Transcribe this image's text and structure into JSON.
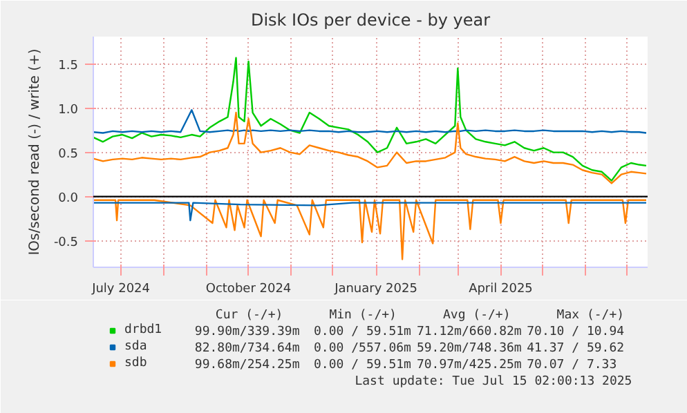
{
  "chart_data": {
    "type": "line",
    "title": "Disk IOs per device - by year",
    "ylabel": "IOs/second read (-) / write (+)",
    "x": [
      "2024-06-11",
      "2024-06-18",
      "2024-06-25",
      "2024-07-02",
      "2024-07-09",
      "2024-07-16",
      "2024-07-23",
      "2024-07-30",
      "2024-08-06",
      "2024-08-13",
      "2024-08-21",
      "2024-08-27",
      "2024-09-03",
      "2024-09-10",
      "2024-09-16",
      "2024-09-20",
      "2024-09-22",
      "2024-09-24",
      "2024-09-28",
      "2024-10-01",
      "2024-10-04",
      "2024-10-10",
      "2024-10-17",
      "2024-10-24",
      "2024-10-31",
      "2024-11-07",
      "2024-11-14",
      "2024-11-21",
      "2024-11-28",
      "2024-12-05",
      "2024-12-12",
      "2024-12-19",
      "2024-12-26",
      "2025-01-02",
      "2025-01-09",
      "2025-01-16",
      "2025-01-23",
      "2025-01-30",
      "2025-02-06",
      "2025-02-13",
      "2025-02-20",
      "2025-02-27",
      "2025-03-01",
      "2025-03-03",
      "2025-03-07",
      "2025-03-14",
      "2025-03-21",
      "2025-03-28",
      "2025-04-04",
      "2025-04-11",
      "2025-04-18",
      "2025-04-25",
      "2025-05-02",
      "2025-05-09",
      "2025-05-16",
      "2025-05-23",
      "2025-05-30",
      "2025-06-06",
      "2025-06-13",
      "2025-06-20",
      "2025-06-27",
      "2025-07-04",
      "2025-07-10",
      "2025-07-15"
    ],
    "series": [
      {
        "name": "drbd1",
        "color": "#00cc00",
        "values": [
          0.67,
          0.62,
          0.68,
          0.7,
          0.66,
          0.72,
          0.68,
          0.7,
          0.69,
          0.67,
          0.7,
          0.68,
          0.78,
          0.85,
          0.9,
          1.3,
          1.57,
          0.9,
          0.85,
          1.53,
          0.95,
          0.8,
          0.88,
          0.82,
          0.75,
          0.72,
          0.95,
          0.88,
          0.8,
          0.78,
          0.76,
          0.7,
          0.62,
          0.5,
          0.55,
          0.78,
          0.6,
          0.62,
          0.65,
          0.6,
          0.7,
          0.8,
          1.45,
          0.9,
          0.75,
          0.65,
          0.62,
          0.6,
          0.58,
          0.62,
          0.55,
          0.52,
          0.55,
          0.5,
          0.5,
          0.45,
          0.35,
          0.3,
          0.28,
          0.18,
          0.33,
          0.38,
          0.36,
          0.35
        ]
      },
      {
        "name": "sda",
        "color": "#0066b3",
        "values": [
          0.73,
          0.72,
          0.74,
          0.73,
          0.74,
          0.73,
          0.74,
          0.73,
          0.74,
          0.73,
          0.98,
          0.74,
          0.73,
          0.74,
          0.75,
          0.74,
          0.75,
          0.74,
          0.75,
          0.74,
          0.75,
          0.74,
          0.75,
          0.74,
          0.75,
          0.74,
          0.75,
          0.74,
          0.74,
          0.73,
          0.74,
          0.73,
          0.73,
          0.74,
          0.73,
          0.74,
          0.73,
          0.74,
          0.73,
          0.74,
          0.73,
          0.74,
          0.74,
          0.74,
          0.75,
          0.74,
          0.75,
          0.74,
          0.74,
          0.75,
          0.74,
          0.74,
          0.75,
          0.74,
          0.74,
          0.74,
          0.74,
          0.73,
          0.74,
          0.73,
          0.74,
          0.73,
          0.73,
          0.72
        ]
      },
      {
        "name": "sdb",
        "color": "#ff8000",
        "values": [
          0.43,
          0.4,
          0.42,
          0.43,
          0.42,
          0.44,
          0.43,
          0.42,
          0.43,
          0.42,
          0.44,
          0.45,
          0.5,
          0.52,
          0.55,
          0.7,
          0.95,
          0.6,
          0.6,
          0.88,
          0.6,
          0.5,
          0.52,
          0.55,
          0.5,
          0.48,
          0.58,
          0.55,
          0.52,
          0.5,
          0.47,
          0.45,
          0.4,
          0.33,
          0.35,
          0.5,
          0.38,
          0.4,
          0.4,
          0.42,
          0.44,
          0.5,
          0.83,
          0.55,
          0.48,
          0.45,
          0.43,
          0.42,
          0.4,
          0.45,
          0.4,
          0.38,
          0.4,
          0.38,
          0.38,
          0.36,
          0.3,
          0.27,
          0.25,
          0.15,
          0.25,
          0.28,
          0.27,
          0.26
        ]
      },
      {
        "color": "#ff8000",
        "x": [
          "2024-06-11",
          "2024-06-27",
          "2024-06-28",
          "2024-06-29",
          "2024-07-25",
          "2024-08-20",
          "2024-09-05",
          "2024-09-07",
          "2024-09-15",
          "2024-09-17",
          "2024-09-21",
          "2024-09-23",
          "2024-09-28",
          "2024-09-30",
          "2024-10-10",
          "2024-10-12",
          "2024-10-20",
          "2024-10-22",
          "2024-11-05",
          "2024-11-14",
          "2024-11-16",
          "2024-11-24",
          "2024-11-26",
          "2024-12-20",
          "2024-12-22",
          "2024-12-24",
          "2024-12-29",
          "2024-12-31",
          "2025-01-04",
          "2025-01-06",
          "2025-01-18",
          "2025-01-20",
          "2025-01-22",
          "2025-01-28",
          "2025-01-30",
          "2025-02-11",
          "2025-02-13",
          "2025-03-08",
          "2025-03-10",
          "2025-03-12",
          "2025-03-30",
          "2025-04-01",
          "2025-04-03",
          "2025-05-18",
          "2025-05-20",
          "2025-05-22",
          "2025-06-28",
          "2025-06-30",
          "2025-07-02",
          "2025-07-15"
        ],
        "values": [
          -0.04,
          -0.04,
          -0.27,
          -0.04,
          -0.04,
          -0.1,
          -0.3,
          -0.04,
          -0.35,
          -0.04,
          -0.38,
          -0.1,
          -0.35,
          -0.04,
          -0.45,
          -0.04,
          -0.3,
          -0.04,
          -0.1,
          -0.43,
          -0.04,
          -0.35,
          -0.04,
          -0.04,
          -0.52,
          -0.04,
          -0.4,
          -0.04,
          -0.42,
          -0.04,
          -0.04,
          -0.71,
          -0.04,
          -0.4,
          -0.04,
          -0.53,
          -0.04,
          -0.04,
          -0.37,
          -0.04,
          -0.04,
          -0.3,
          -0.04,
          -0.04,
          -0.3,
          -0.04,
          -0.04,
          -0.3,
          -0.04,
          -0.04
        ]
      },
      {
        "color": "#0066b3",
        "x": [
          "2024-06-11",
          "2024-08-19",
          "2024-08-20",
          "2024-08-22",
          "2024-09-25",
          "2024-11-20",
          "2024-12-15",
          "2025-07-15"
        ],
        "values": [
          -0.07,
          -0.07,
          -0.27,
          -0.07,
          -0.09,
          -0.1,
          -0.07,
          -0.07
        ]
      }
    ],
    "xlim": [
      "2024-06-11",
      "2025-07-16"
    ],
    "xticks": [
      {
        "value": "2024-07-01",
        "label": "July 2024"
      },
      {
        "value": "2024-08-01",
        "label": null
      },
      {
        "value": "2024-09-01",
        "label": null
      },
      {
        "value": "2024-10-01",
        "label": "October 2024"
      },
      {
        "value": "2024-11-01",
        "label": null
      },
      {
        "value": "2024-12-01",
        "label": null
      },
      {
        "value": "2025-01-01",
        "label": "January 2025"
      },
      {
        "value": "2025-02-01",
        "label": null
      },
      {
        "value": "2025-03-01",
        "label": null
      },
      {
        "value": "2025-04-01",
        "label": "April 2025"
      },
      {
        "value": "2025-05-01",
        "label": null
      },
      {
        "value": "2025-06-01",
        "label": null
      },
      {
        "value": "2025-07-01",
        "label": null
      }
    ],
    "ylim": [
      -0.8,
      1.81
    ],
    "yticks": [
      -0.5,
      {
        "value": 0,
        "label": "0.0"
      },
      0.5,
      {
        "value": 1,
        "label": "1.0"
      },
      1.5
    ],
    "ref_lines": [
      {
        "axis": "y",
        "value": 0,
        "label": null,
        "color": "#000000"
      }
    ],
    "grid": true,
    "legend": "bottom",
    "marker": "none",
    "line_style": "solid",
    "annotations": [
      "Cur (-/+)",
      "Min (-/+)",
      "Avg (-/+)",
      "Max (-/+)",
      "99.90m/339.39m",
      "0.00 / 59.51m",
      "71.12m/660.82m",
      "70.10 / 10.94",
      "82.80m/734.64m",
      "0.00 /557.06m",
      "59.20m/748.36m",
      "41.37 / 59.62",
      "99.68m/254.25m",
      "0.00 / 59.51m",
      "70.97m/425.25m",
      "70.07 /  7.33",
      "Last update: Tue Jul 15 02:00:13 2025"
    ]
  }
}
